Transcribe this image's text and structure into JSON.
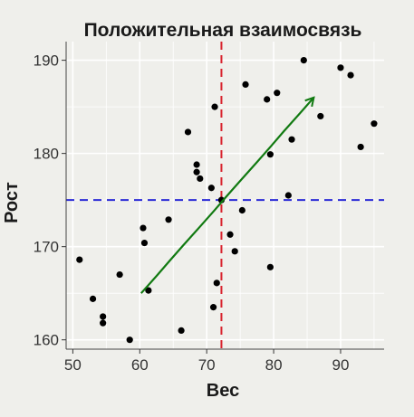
{
  "chart_data": {
    "type": "scatter",
    "title": "Положительная взаимосвязь",
    "xlabel": "Вес",
    "ylabel": "Рост",
    "xlim": [
      49,
      96.5
    ],
    "ylim": [
      159,
      192
    ],
    "xticks": [
      50,
      60,
      70,
      80,
      90
    ],
    "yticks": [
      160,
      170,
      180,
      190
    ],
    "grid": true,
    "points": [
      [
        51,
        168.6
      ],
      [
        53,
        164.4
      ],
      [
        54.5,
        162.5
      ],
      [
        54.5,
        161.8
      ],
      [
        57,
        167
      ],
      [
        58.5,
        160
      ],
      [
        60.5,
        172
      ],
      [
        60.7,
        170.4
      ],
      [
        61.3,
        165.3
      ],
      [
        64.3,
        172.9
      ],
      [
        66.2,
        161
      ],
      [
        67.2,
        182.3
      ],
      [
        68.5,
        178.8
      ],
      [
        68.5,
        178
      ],
      [
        69,
        177.3
      ],
      [
        70.7,
        176.3
      ],
      [
        71,
        163.5
      ],
      [
        71.2,
        185
      ],
      [
        71.5,
        166.1
      ],
      [
        72.2,
        175
      ],
      [
        75.3,
        173.9
      ],
      [
        73.5,
        171.3
      ],
      [
        74.2,
        169.5
      ],
      [
        75.8,
        187.4
      ],
      [
        79,
        185.8
      ],
      [
        79.5,
        179.9
      ],
      [
        79.5,
        167.8
      ],
      [
        80.5,
        186.5
      ],
      [
        82.2,
        175.5
      ],
      [
        82.7,
        181.5
      ],
      [
        84.5,
        190
      ],
      [
        87,
        184
      ],
      [
        90,
        189.2
      ],
      [
        91.5,
        188.4
      ],
      [
        93,
        180.7
      ],
      [
        95,
        183.2
      ]
    ],
    "mean_x": 72.2,
    "mean_y": 175,
    "trend_arrow": {
      "from": [
        60.2,
        165
      ],
      "to": [
        86,
        186
      ]
    },
    "colors": {
      "points": "#000000",
      "mean_x_line": "#d9232e",
      "mean_y_line": "#2b2bd6",
      "arrow": "#117a11",
      "grid": "#ffffff",
      "panel": "#efefeb"
    }
  }
}
